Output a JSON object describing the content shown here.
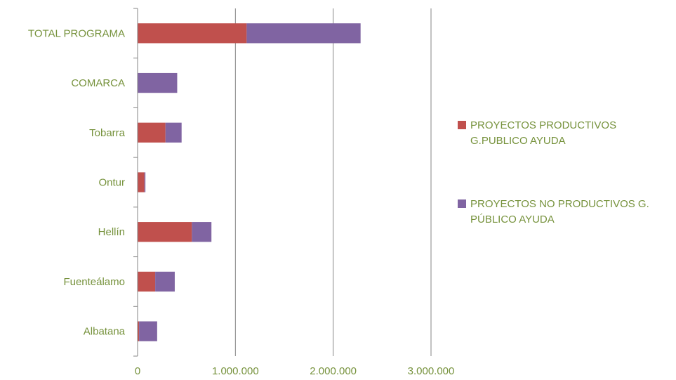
{
  "chart_data": {
    "type": "bar",
    "orientation": "horizontal",
    "stacked": true,
    "categories": [
      "TOTAL PROGRAMA",
      "COMARCA",
      "Tobarra",
      "Ontur",
      "Hellín",
      "Fuenteálamo",
      "Albatana"
    ],
    "series": [
      {
        "name": "PROYECTOS PRODUCTIVOS G.PUBLICO AYUDA",
        "color": "#c0504d",
        "values": [
          1115000,
          0,
          285000,
          70000,
          555000,
          180000,
          15000
        ]
      },
      {
        "name": "PROYECTOS NO PRODUCTIVOS G. PÚBLICO AYUDA",
        "color": "#8064a2",
        "values": [
          1165000,
          405000,
          165000,
          10000,
          200000,
          200000,
          185000
        ]
      }
    ],
    "legend_lines": [
      [
        "PROYECTOS PRODUCTIVOS",
        "G.PUBLICO AYUDA"
      ],
      [
        "PROYECTOS NO PRODUCTIVOS G.",
        "PÚBLICO AYUDA"
      ]
    ],
    "xlim": [
      0,
      3000000
    ],
    "xticks": [
      0,
      1000000,
      2000000,
      3000000
    ],
    "xtick_labels": [
      "0",
      "1.000.000",
      "2.000.000",
      "3.000.000"
    ],
    "grid": "vertical",
    "legend_position": "right",
    "title": "",
    "xlabel": "",
    "ylabel": ""
  }
}
